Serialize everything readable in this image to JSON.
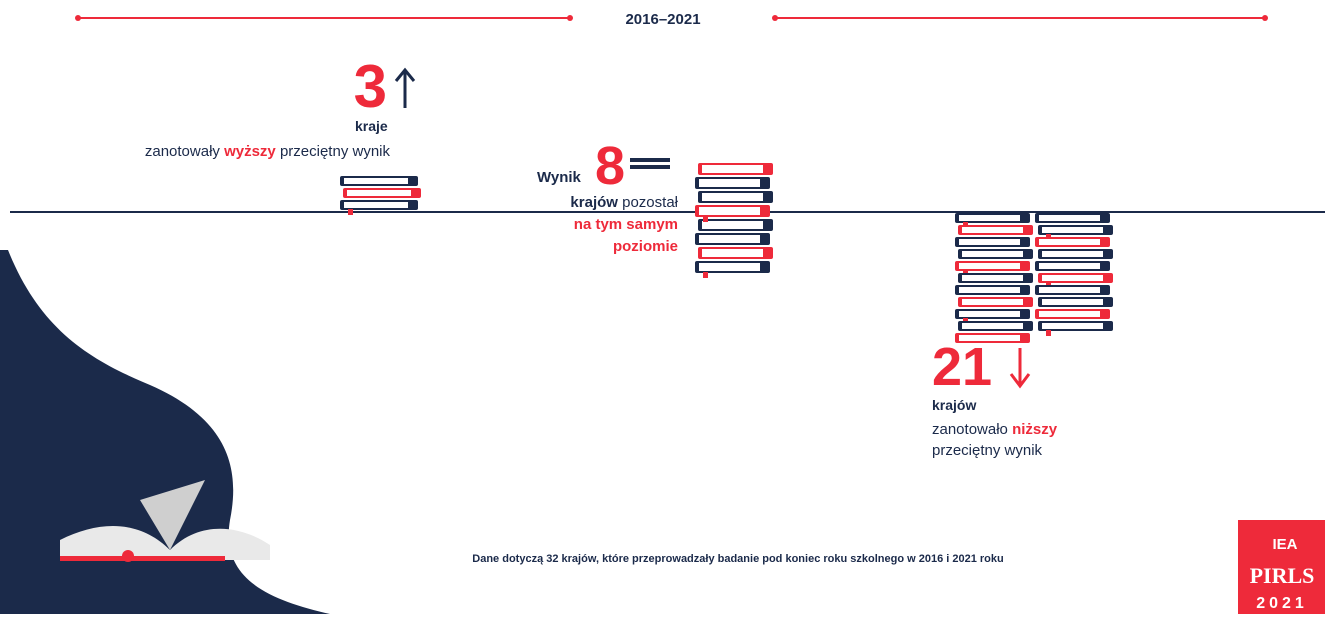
{
  "period": "2016–2021",
  "groups": [
    {
      "number": 3,
      "unit": "kraje",
      "parts": [
        "zanotowały ",
        "wyższy",
        " przeciętny wynik"
      ]
    },
    {
      "prefix": "Wynik",
      "number": 8,
      "parts": [
        "krajów",
        " pozostał"
      ],
      "highlight": [
        "na tym samym",
        "poziomie"
      ]
    },
    {
      "number": 21,
      "unit": "krajów",
      "parts": [
        "zanotowało ",
        "niższy"
      ],
      "line2": "przeciętny wynik"
    }
  ],
  "footnote": "Dane dotyczą 32 krajów, które przeprowadzały badanie pod koniec roku szkolnego w 2016 i 2021 roku",
  "logo": {
    "org": "IEA",
    "name": "PIRLS",
    "year": "2021"
  }
}
